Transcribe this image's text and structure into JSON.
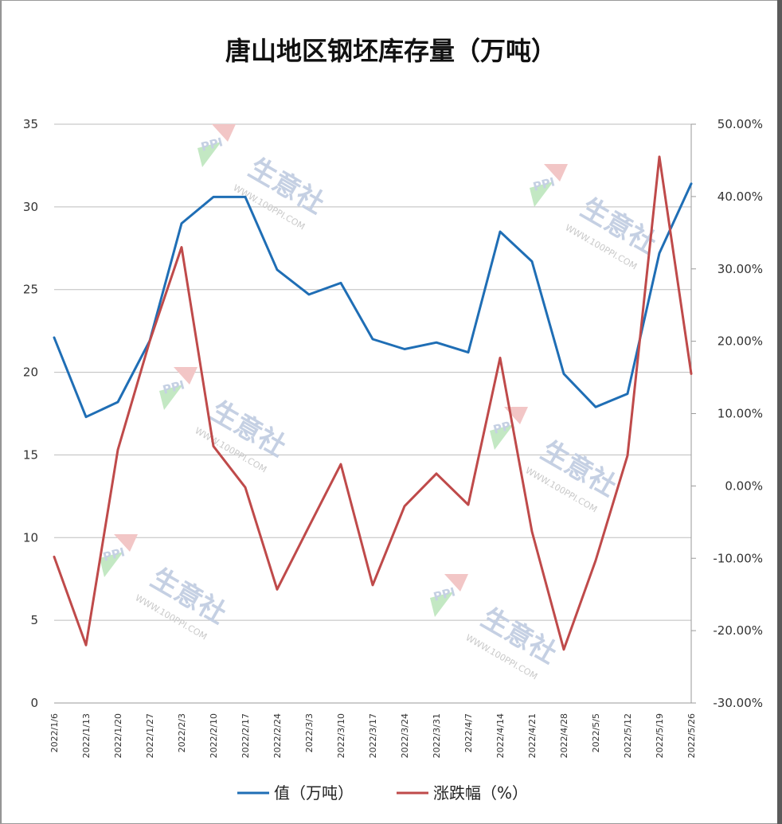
{
  "chart_data": {
    "type": "line",
    "title": "唐山地区钢坯库存量（万吨）",
    "categories": [
      "2022/1/6",
      "2022/1/13",
      "2022/1/20",
      "2022/1/27",
      "2022/2/3",
      "2022/2/10",
      "2022/2/17",
      "2022/2/24",
      "2022/3/3",
      "2022/3/10",
      "2022/3/17",
      "2022/3/24",
      "2022/3/31",
      "2022/4/7",
      "2022/4/14",
      "2022/4/21",
      "2022/4/28",
      "2022/5/5",
      "2022/5/12",
      "2022/5/19",
      "2022/5/26"
    ],
    "y_left": {
      "min": 0,
      "max": 35,
      "step": 5,
      "ticks": [
        "0",
        "5",
        "10",
        "15",
        "20",
        "25",
        "30",
        "35"
      ]
    },
    "y_right": {
      "min": -30,
      "max": 50,
      "step": 10,
      "ticks": [
        "-30.00%",
        "-20.00%",
        "-10.00%",
        "0.00%",
        "10.00%",
        "20.00%",
        "30.00%",
        "40.00%",
        "50.00%"
      ]
    },
    "series": [
      {
        "name": "值（万吨）",
        "axis": "left",
        "color": "#1f6eb5",
        "values": [
          22.1,
          17.3,
          18.2,
          21.9,
          29.0,
          30.6,
          30.6,
          26.2,
          24.7,
          25.4,
          22.0,
          21.4,
          21.8,
          21.2,
          28.5,
          26.7,
          19.9,
          17.9,
          18.7,
          27.2,
          31.4
        ]
      },
      {
        "name": "涨跌幅（%）",
        "axis": "right",
        "color": "#bf4a4a",
        "values": [
          -9.8,
          -22.0,
          5.0,
          20.0,
          33.0,
          5.5,
          -0.2,
          -14.3,
          -5.6,
          3.0,
          -13.7,
          -2.8,
          1.7,
          -2.6,
          17.7,
          -6.3,
          -22.6,
          -10.3,
          4.2,
          45.5,
          15.5
        ]
      }
    ],
    "grid": true,
    "legend_position": "bottom"
  },
  "watermark": {
    "text": "生意社",
    "url": "WWW.100PPI.COM",
    "logo": "PPI"
  }
}
